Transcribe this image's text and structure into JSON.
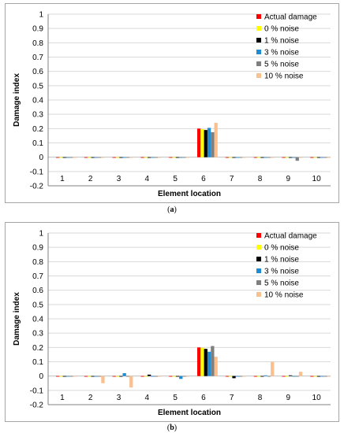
{
  "colors": {
    "actual": "#ff0000",
    "noise0": "#ffff00",
    "noise1": "#000000",
    "noise3": "#1f8bd1",
    "noise5": "#7f7f7f",
    "noise10": "#fac090",
    "grid": "#d9d9d9",
    "axis": "#808080"
  },
  "captions": {
    "a_open": "(",
    "a": "a",
    "a_close": ")",
    "b_open": "(",
    "b": "b",
    "b_close": ")"
  },
  "chart_data": [
    {
      "type": "bar",
      "panel": "a",
      "xlabel": "Element location",
      "ylabel": "Damage index",
      "ylim": [
        -0.2,
        1
      ],
      "yticks": [
        "-0.2",
        "-0.1",
        "0",
        "0.1",
        "0.2",
        "0.3",
        "0.4",
        "0.5",
        "0.6",
        "0.7",
        "0.8",
        "0.9",
        "1"
      ],
      "categories": [
        "1",
        "2",
        "3",
        "4",
        "5",
        "6",
        "7",
        "8",
        "9",
        "10"
      ],
      "grid": true,
      "legend_position": "top-right",
      "series": [
        {
          "name": "Actual damage",
          "color_key": "actual",
          "values": [
            0,
            0,
            0,
            0,
            0,
            0.2,
            0,
            0,
            0,
            0
          ]
        },
        {
          "name": "0 % noise",
          "color_key": "noise0",
          "values": [
            -0.003,
            -0.003,
            -0.003,
            -0.003,
            -0.003,
            0.196,
            -0.003,
            -0.003,
            -0.003,
            -0.003
          ]
        },
        {
          "name": "1 % noise",
          "color_key": "noise1",
          "values": [
            -0.003,
            -0.003,
            -0.003,
            -0.003,
            -0.003,
            0.19,
            -0.003,
            -0.003,
            -0.003,
            -0.003
          ]
        },
        {
          "name": "3 % noise",
          "color_key": "noise3",
          "values": [
            -0.003,
            -0.003,
            -0.003,
            -0.003,
            -0.003,
            0.205,
            -0.003,
            -0.003,
            -0.003,
            -0.003
          ]
        },
        {
          "name": "5 % noise",
          "color_key": "noise5",
          "values": [
            -0.003,
            -0.003,
            -0.003,
            -0.003,
            -0.003,
            0.175,
            -0.003,
            -0.003,
            -0.025,
            -0.003
          ]
        },
        {
          "name": "10 % noise",
          "color_key": "noise10",
          "values": [
            -0.003,
            -0.003,
            -0.003,
            -0.003,
            -0.003,
            0.24,
            -0.003,
            -0.003,
            -0.003,
            -0.003
          ]
        }
      ]
    },
    {
      "type": "bar",
      "panel": "b",
      "xlabel": "Element location",
      "ylabel": "Damage index",
      "ylim": [
        -0.2,
        1
      ],
      "yticks": [
        "-0.2",
        "-0.1",
        "0",
        "0.1",
        "0.2",
        "0.3",
        "0.4",
        "0.5",
        "0.6",
        "0.7",
        "0.8",
        "0.9",
        "1"
      ],
      "categories": [
        "1",
        "2",
        "3",
        "4",
        "5",
        "6",
        "7",
        "8",
        "9",
        "10"
      ],
      "grid": true,
      "legend_position": "top-right",
      "series": [
        {
          "name": "Actual damage",
          "color_key": "actual",
          "values": [
            0,
            0,
            0,
            0,
            0,
            0.2,
            0,
            0,
            0,
            0
          ]
        },
        {
          "name": "0 % noise",
          "color_key": "noise0",
          "values": [
            -0.003,
            -0.003,
            -0.003,
            -0.003,
            -0.003,
            0.197,
            -0.003,
            -0.003,
            -0.003,
            -0.003
          ]
        },
        {
          "name": "1 % noise",
          "color_key": "noise1",
          "values": [
            -0.003,
            -0.003,
            -0.003,
            0.01,
            -0.003,
            0.19,
            -0.015,
            -0.003,
            0.005,
            -0.003
          ]
        },
        {
          "name": "3 % noise",
          "color_key": "noise3",
          "values": [
            -0.003,
            -0.003,
            0.02,
            -0.003,
            -0.02,
            0.17,
            -0.003,
            0.005,
            -0.003,
            -0.003
          ]
        },
        {
          "name": "5 % noise",
          "color_key": "noise5",
          "values": [
            -0.003,
            -0.003,
            -0.003,
            -0.003,
            -0.003,
            0.21,
            -0.003,
            -0.003,
            -0.003,
            -0.003
          ]
        },
        {
          "name": "10 % noise",
          "color_key": "noise10",
          "values": [
            -0.003,
            -0.05,
            -0.08,
            -0.003,
            -0.003,
            0.135,
            -0.003,
            0.1,
            0.03,
            -0.003
          ]
        }
      ]
    }
  ]
}
